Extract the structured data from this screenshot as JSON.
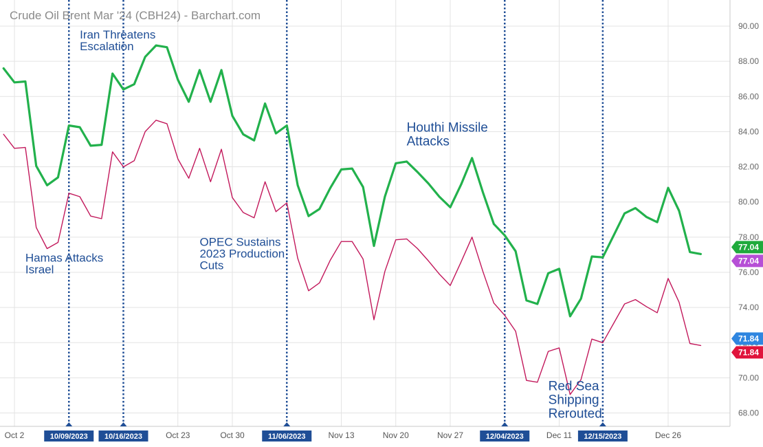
{
  "chart_data": {
    "type": "line",
    "title": "Crude Oil Brent Mar '24 (CBH24) - Barchart.com",
    "ylim": [
      67,
      92
    ],
    "y_ticks": [
      "68.00",
      "70.00",
      "72.00",
      "74.00",
      "76.00",
      "78.00",
      "80.00",
      "82.00",
      "84.00",
      "86.00",
      "88.00",
      "90.00"
    ],
    "x_ticks": [
      {
        "label": "Oct 2",
        "x": 0
      },
      {
        "label": "Oct 23",
        "x": 15
      },
      {
        "label": "Oct 30",
        "x": 20
      },
      {
        "label": "Nov 13",
        "x": 30
      },
      {
        "label": "Nov 20",
        "x": 35
      },
      {
        "label": "Nov 27",
        "x": 40
      },
      {
        "label": "Dec 11",
        "x": 50
      },
      {
        "label": "Dec 26",
        "x": 60
      }
    ],
    "event_ticks": [
      {
        "label": "10/09/2023",
        "x": 5
      },
      {
        "label": "10/16/2023",
        "x": 10
      },
      {
        "label": "11/06/2023",
        "x": 25
      },
      {
        "label": "12/04/2023",
        "x": 45
      },
      {
        "label": "12/15/2023",
        "x": 54
      }
    ],
    "annotations": [
      {
        "lines": [
          "Hamas Attacks",
          "Israel"
        ],
        "x": 1,
        "y": 76.6,
        "size": "normal"
      },
      {
        "lines": [
          "Iran Threatens",
          "Escalation"
        ],
        "x": 6,
        "y": 89.3,
        "size": "normal"
      },
      {
        "lines": [
          "OPEC Sustains",
          "2023 Production",
          "Cuts"
        ],
        "x": 17,
        "y": 77.5,
        "size": "normal"
      },
      {
        "lines": [
          "Houthi Missile",
          "Attacks"
        ],
        "x": 36,
        "y": 84.0,
        "size": "big"
      },
      {
        "lines": [
          "Red Sea",
          "Shipping",
          "Rerouted"
        ],
        "x": 49,
        "y": 69.3,
        "size": "big"
      }
    ],
    "series": [
      {
        "color": "#22b14c",
        "x": [
          -1,
          0,
          1,
          2,
          3,
          4,
          5,
          6,
          7,
          8,
          9,
          10,
          11,
          12,
          13,
          14,
          15,
          16,
          17,
          18,
          19,
          20,
          21,
          22,
          23,
          24,
          25,
          26,
          27,
          28,
          29,
          30,
          31,
          32,
          33,
          34,
          35,
          36,
          37,
          38,
          39,
          40,
          41,
          42,
          43,
          44,
          45,
          46,
          47,
          48,
          49,
          50,
          51,
          52,
          53,
          54,
          55,
          56,
          57,
          58,
          59,
          60,
          61,
          62,
          63
        ],
        "values": [
          87.6,
          86.8,
          86.85,
          82.05,
          80.95,
          81.4,
          84.35,
          84.25,
          83.2,
          83.25,
          87.3,
          86.4,
          86.7,
          88.25,
          88.9,
          88.8,
          86.95,
          85.7,
          87.5,
          85.7,
          87.5,
          84.9,
          83.85,
          83.5,
          85.6,
          83.9,
          84.35,
          80.95,
          79.2,
          79.6,
          80.8,
          81.85,
          81.9,
          80.85,
          77.5,
          80.3,
          82.2,
          82.3,
          81.7,
          81.05,
          80.3,
          79.7,
          81.0,
          82.5,
          80.55,
          78.75,
          78.1,
          77.2,
          74.4,
          74.2,
          75.95,
          76.2,
          73.5,
          74.5,
          76.9,
          76.85,
          78.1,
          79.35,
          79.65,
          79.15,
          78.85,
          80.8,
          79.5,
          77.15,
          77.04
        ]
      },
      {
        "color": "#c2185b",
        "x": [
          -1,
          0,
          1,
          2,
          3,
          4,
          5,
          6,
          7,
          8,
          9,
          10,
          11,
          12,
          13,
          14,
          15,
          16,
          17,
          18,
          19,
          20,
          21,
          22,
          23,
          24,
          25,
          26,
          27,
          28,
          29,
          30,
          31,
          32,
          33,
          34,
          35,
          36,
          37,
          38,
          39,
          40,
          41,
          42,
          43,
          44,
          45,
          46,
          47,
          48,
          49,
          50,
          51,
          52,
          53,
          54,
          55,
          56,
          57,
          58,
          59,
          60,
          61,
          62,
          63
        ],
        "values": [
          83.85,
          83.05,
          83.1,
          78.55,
          77.35,
          77.7,
          80.5,
          80.3,
          79.2,
          79.05,
          82.85,
          82.0,
          82.35,
          84.0,
          84.65,
          84.45,
          82.45,
          81.35,
          83.05,
          81.15,
          83.0,
          80.25,
          79.4,
          79.1,
          81.15,
          79.45,
          79.95,
          76.8,
          74.95,
          75.4,
          76.7,
          77.75,
          77.75,
          76.75,
          73.3,
          76.05,
          77.85,
          77.9,
          77.35,
          76.65,
          75.9,
          75.25,
          76.6,
          78.0,
          76.05,
          74.25,
          73.55,
          72.65,
          69.85,
          69.75,
          71.5,
          71.7,
          69.05,
          69.9,
          72.2,
          72.0,
          73.1,
          74.2,
          74.45,
          74.05,
          73.7,
          75.65,
          74.3,
          71.95,
          71.84
        ]
      }
    ],
    "price_badges": [
      {
        "label": "77.04",
        "value": 77.04,
        "color": "#1faa3c",
        "offset": -10
      },
      {
        "label": "77.04",
        "value": 77.04,
        "color": "#b64fd6",
        "offset": 10
      },
      {
        "label": "71.84",
        "value": 71.84,
        "color": "#2f86e0",
        "offset": -10
      },
      {
        "label": "71.84",
        "value": 71.84,
        "color": "#e0143c",
        "offset": 10
      }
    ]
  }
}
